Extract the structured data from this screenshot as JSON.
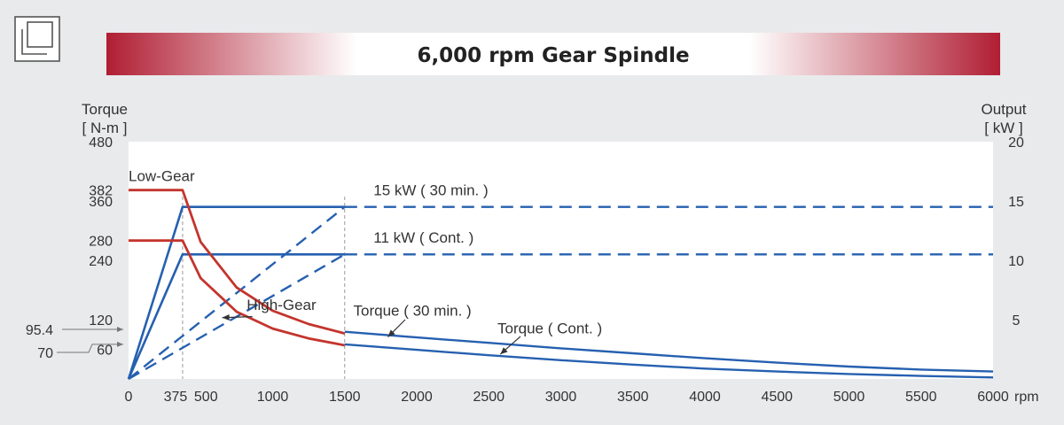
{
  "icon": {
    "name": "window-restore-icon"
  },
  "colors": {
    "accent_red": "#b01e33",
    "torque": "#c4342c",
    "output": "#2660b0",
    "background": "#e9eaec",
    "plot_background": "#ffffff",
    "text": "#333333"
  },
  "chart_data": {
    "type": "line",
    "title": "6,000 rpm Gear Spindle",
    "left_axis": {
      "label_line1": "Torque",
      "label_line2": "[ N-m ]",
      "range": [
        0,
        480
      ],
      "ticks": [
        60,
        120,
        240,
        280,
        360,
        382,
        480
      ],
      "tick_labels": [
        "60",
        "120",
        "240",
        "280",
        "360",
        "382",
        "480"
      ],
      "outside_ticks": [
        {
          "value": 95.4,
          "label": "95.4"
        },
        {
          "value": 70,
          "label": "70"
        }
      ]
    },
    "right_axis": {
      "label_line1": "Output",
      "label_line2": "[ kW ]",
      "range": [
        0,
        20
      ],
      "ticks": [
        5,
        10,
        15,
        20
      ],
      "tick_labels": [
        "5",
        "10",
        "15",
        "20"
      ]
    },
    "x_axis": {
      "range": [
        0,
        6000
      ],
      "ticks": [
        0,
        375,
        500,
        1000,
        1500,
        2000,
        2500,
        3000,
        3500,
        4000,
        4500,
        5000,
        5500,
        6000
      ],
      "tick_labels": [
        "0",
        "375",
        "500",
        "1000",
        "1500",
        "2000",
        "2500",
        "3000",
        "3500",
        "4000",
        "4500",
        "5000",
        "5500",
        "6000"
      ],
      "unit": "rpm"
    },
    "reference_lines_x": [
      375,
      1500
    ],
    "series": [
      {
        "name": "15 kW ( 30 min. )",
        "axis": "right",
        "style": "solid",
        "points": [
          [
            0,
            0
          ],
          [
            375,
            14.5
          ],
          [
            1500,
            14.5
          ]
        ]
      },
      {
        "axis": "right",
        "style": "dashed",
        "points": [
          [
            1500,
            14.5
          ],
          [
            6000,
            14.5
          ]
        ]
      },
      {
        "name": "11 kW ( Cont. )",
        "axis": "right",
        "style": "solid",
        "points": [
          [
            0,
            0
          ],
          [
            375,
            10.5
          ],
          [
            1500,
            10.5
          ]
        ]
      },
      {
        "axis": "right",
        "style": "dashed",
        "points": [
          [
            1500,
            10.5
          ],
          [
            6000,
            10.5
          ]
        ]
      },
      {
        "name": "High-Gear",
        "axis": "right",
        "style": "dashed",
        "points": [
          [
            0,
            0
          ],
          [
            1500,
            14.5
          ]
        ]
      },
      {
        "axis": "right",
        "style": "dashed",
        "points": [
          [
            0,
            0
          ],
          [
            1500,
            10.5
          ]
        ]
      },
      {
        "name": "Low-Gear",
        "axis": "left",
        "style": "torque",
        "points": [
          [
            0,
            382
          ],
          [
            375,
            382
          ],
          [
            500,
            277
          ],
          [
            750,
            185
          ],
          [
            1000,
            138
          ],
          [
            1250,
            111
          ],
          [
            1500,
            92
          ]
        ]
      },
      {
        "axis": "left",
        "style": "torque",
        "points": [
          [
            0,
            280
          ],
          [
            375,
            280
          ],
          [
            500,
            204
          ],
          [
            750,
            136
          ],
          [
            1000,
            102
          ],
          [
            1250,
            82
          ],
          [
            1500,
            68
          ]
        ]
      },
      {
        "name": "Torque ( 30 min. )",
        "axis": "left",
        "style": "solid",
        "points": [
          [
            1500,
            95.4
          ],
          [
            2000,
            84
          ],
          [
            2500,
            73
          ],
          [
            3000,
            62
          ],
          [
            3500,
            52
          ],
          [
            4000,
            42
          ],
          [
            4500,
            33
          ],
          [
            5000,
            25
          ],
          [
            5500,
            19
          ],
          [
            6000,
            15
          ]
        ]
      },
      {
        "name": "Torque ( Cont. )",
        "axis": "left",
        "style": "solid",
        "points": [
          [
            1500,
            70
          ],
          [
            2000,
            59
          ],
          [
            2500,
            48
          ],
          [
            3000,
            38
          ],
          [
            3500,
            29
          ],
          [
            4000,
            21
          ],
          [
            4500,
            15
          ],
          [
            5000,
            10
          ],
          [
            5500,
            6
          ],
          [
            6000,
            3
          ]
        ]
      }
    ],
    "annotations": [
      {
        "text": "Low-Gear",
        "at": [
          0,
          400
        ],
        "axis": "left"
      },
      {
        "text": "15 kW ( 30 min. )",
        "at": [
          1700,
          15.5
        ],
        "axis": "right"
      },
      {
        "text": "11 kW ( Cont. )",
        "at": [
          1700,
          11.5
        ],
        "axis": "right"
      },
      {
        "text": "High-Gear",
        "at": [
          820,
          140
        ],
        "axis": "left"
      },
      {
        "text": "Torque ( 30 min. )",
        "at": [
          1560,
          128
        ],
        "axis": "left"
      },
      {
        "text": "Torque ( Cont. )",
        "at": [
          2560,
          92
        ],
        "axis": "left"
      }
    ],
    "pointers": [
      {
        "from": [
          1920,
          120
        ],
        "to": [
          1800,
          85
        ],
        "axis": "left"
      },
      {
        "from": [
          2720,
          86
        ],
        "to": [
          2580,
          50
        ],
        "axis": "left"
      },
      {
        "from": [
          860,
          126
        ],
        "to": [
          650,
          124
        ],
        "axis": "left"
      }
    ]
  }
}
